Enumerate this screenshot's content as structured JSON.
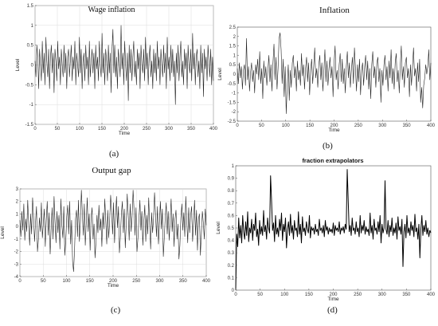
{
  "chart_data": [
    {
      "type": "line",
      "panel_label": "(a)",
      "title": "Wage inflation",
      "xlabel": "Time",
      "ylabel": "Level",
      "xlim": [
        0,
        400
      ],
      "ylim": [
        -1.5,
        1.5
      ],
      "x_ticks": [
        0,
        50,
        100,
        150,
        200,
        250,
        300,
        350,
        400
      ],
      "y_ticks": [
        -1.5,
        -1,
        -0.5,
        0,
        0.5,
        1,
        1.5
      ],
      "grid": true,
      "series": [
        {
          "values": [
            0.1,
            -0.3,
            0.5,
            0.2,
            -0.6,
            0.4,
            0.0,
            -0.4,
            0.6,
            -0.2,
            0.3,
            -0.5,
            0.7,
            0.1,
            -0.3,
            0.4,
            -0.6,
            0.2,
            0.5,
            -0.2,
            0.3,
            -0.7,
            0.4,
            0.1,
            -0.4,
            0.6,
            -0.1,
            0.2,
            -0.5,
            0.4,
            0.0,
            -0.3,
            0.5,
            -0.2,
            0.3,
            -0.6,
            0.2,
            0.4,
            -0.3,
            0.1,
            0.5,
            -0.4,
            0.2,
            -0.1,
            0.6,
            -0.5,
            0.3,
            0.0,
            -0.3,
            0.7,
            -0.2,
            0.4,
            -0.6,
            0.1,
            0.3,
            -0.4,
            0.5,
            -0.1,
            0.2,
            -0.5,
            0.6,
            -0.3,
            0.1,
            0.4,
            -0.2,
            0.3,
            -0.6,
            0.5,
            -0.1,
            0.2,
            -0.4,
            0.6,
            0.0,
            -0.3,
            0.8,
            -0.2,
            0.3,
            -0.5,
            0.4,
            0.1,
            -0.4,
            0.5,
            -0.2,
            0.3,
            -0.7,
            0.4,
            0.9,
            -0.2,
            0.5,
            -0.3,
            0.2,
            -0.6,
            0.4,
            0.1,
            -0.3,
            1.0,
            -0.1,
            0.3,
            -0.5,
            0.6,
            0.0,
            -0.4,
            0.3,
            -0.9,
            0.5,
            -0.2,
            0.4,
            -0.4,
            0.2,
            0.6,
            -0.3,
            0.1,
            -0.5,
            0.4,
            -0.1,
            0.3,
            -0.6,
            0.5,
            0.0,
            -0.2,
            0.4,
            -0.4,
            0.7,
            -0.1,
            0.3,
            -0.5,
            0.2,
            0.5,
            -0.3,
            0.1,
            -0.6,
            0.4,
            -0.2,
            0.3,
            -0.4,
            0.6,
            -0.1,
            0.2,
            -0.5,
            0.4,
            0.0,
            -0.3,
            0.5,
            -0.2,
            0.3,
            -0.6,
            0.7,
            -0.1,
            0.2,
            -0.4,
            0.5,
            -0.2,
            0.4,
            -0.3,
            0.1,
            -1.0,
            0.3,
            -0.2,
            0.5,
            -0.4,
            0.2,
            0.6,
            -0.3,
            0.1,
            -0.5,
            0.4,
            -0.1,
            0.3,
            -0.6,
            0.5,
            0.0,
            -0.2,
            0.4,
            -0.4,
            0.8,
            -0.1,
            0.3,
            -0.5,
            0.2,
            0.4,
            -0.3,
            0.1,
            -0.6,
            0.5,
            -0.2,
            0.3,
            -0.8,
            0.4,
            -0.1,
            0.2,
            -0.4,
            0.5,
            0.1,
            -0.3,
            0.4,
            -0.5,
            0.2,
            -0.4
          ]
        }
      ]
    },
    {
      "type": "line",
      "panel_label": "(b)",
      "title": "Inflation",
      "xlabel": "Time",
      "ylabel": "Level",
      "xlim": [
        0,
        400
      ],
      "ylim": [
        -2.5,
        2.5
      ],
      "x_ticks": [
        0,
        50,
        100,
        150,
        200,
        250,
        300,
        350,
        400
      ],
      "y_ticks": [
        -2.5,
        -2,
        -1.5,
        -1,
        -0.5,
        0,
        0.5,
        1,
        1.5,
        2,
        2.5
      ],
      "grid": false,
      "series": [
        {
          "values": [
            0.3,
            -0.5,
            0.6,
            -0.2,
            0.4,
            -0.8,
            0.2,
            0.5,
            -0.6,
            1.9,
            -0.3,
            0.4,
            -0.9,
            0.1,
            0.6,
            -0.4,
            0.2,
            -1.0,
            0.5,
            0.0,
            0.8,
            -0.3,
            1.2,
            -0.5,
            0.3,
            -1.3,
            0.7,
            -0.2,
            0.4,
            -0.6,
            0.2,
            1.0,
            -0.4,
            0.5,
            -0.9,
            0.6,
            1.6,
            -0.3,
            0.9,
            -0.8,
            0.3,
            1.9,
            2.2,
            1.3,
            -0.5,
            0.8,
            -1.2,
            0.4,
            -2.1,
            -0.6,
            0.5,
            -1.4,
            0.2,
            -0.7,
            0.6,
            1.0,
            -0.2,
            0.4,
            -0.9,
            0.7,
            -0.3,
            0.2,
            -0.6,
            1.1,
            -0.1,
            0.5,
            -0.8,
            0.3,
            0.9,
            -0.4,
            0.6,
            -1.1,
            0.2,
            0.8,
            -0.5,
            0.4,
            1.4,
            -0.2,
            0.3,
            -0.7,
            0.5,
            1.0,
            -0.3,
            0.6,
            -0.9,
            0.2,
            1.3,
            -0.4,
            0.7,
            -0.6,
            0.3,
            0.9,
            -0.2,
            0.4,
            -1.2,
            0.6,
            1.5,
            -0.3,
            0.2,
            -0.8,
            0.5,
            1.1,
            -0.4,
            0.8,
            -0.5,
            0.3,
            -1.0,
            0.4,
            1.2,
            -0.2,
            0.6,
            -0.7,
            0.2,
            0.9,
            -0.5,
            1.4,
            0.3,
            -0.9,
            0.5,
            -0.4,
            0.8,
            -1.1,
            0.2,
            0.6,
            -0.6,
            0.4,
            1.0,
            -0.3,
            0.7,
            -0.8,
            0.3,
            -1.3,
            0.5,
            1.2,
            -0.2,
            0.4,
            -0.7,
            0.6,
            0.9,
            -0.4,
            0.3,
            -1.5,
            0.2,
            -0.6,
            0.5,
            1.0,
            -0.3,
            0.4,
            -0.9,
            0.7,
            -0.2,
            1.3,
            -0.5,
            0.3,
            -0.8,
            0.6,
            1.1,
            -0.4,
            0.2,
            -1.0,
            0.5,
            1.5,
            -0.3,
            0.4,
            -0.7,
            0.6,
            0.9,
            -0.2,
            0.3,
            -1.2,
            0.5,
            -0.6,
            0.4,
            1.4,
            -0.1,
            0.3,
            -0.9,
            0.6,
            -0.4,
            0.8,
            -1.5,
            -0.7,
            -1.8,
            -0.6,
            -0.2,
            0.5,
            0.0,
            0.4,
            1.3,
            -0.3,
            0.6
          ]
        }
      ]
    },
    {
      "type": "line",
      "panel_label": "(c)",
      "title": "Output gap",
      "xlabel": "Time",
      "ylabel": "Level",
      "xlim": [
        0,
        400
      ],
      "ylim": [
        -4,
        3
      ],
      "x_ticks": [
        0,
        50,
        100,
        150,
        200,
        250,
        300,
        350,
        400
      ],
      "y_ticks": [
        -4,
        -3,
        -2,
        -1,
        0,
        1,
        2,
        3
      ],
      "grid": true,
      "series": [
        {
          "values": [
            0.5,
            -0.8,
            1.2,
            -0.3,
            1.8,
            -1.1,
            0.6,
            -0.4,
            2.1,
            0.2,
            -1.5,
            1.0,
            -0.6,
            2.3,
            0.8,
            -1.2,
            0.3,
            1.6,
            -2.0,
            -1.0,
            0.7,
            -0.4,
            1.9,
            -0.9,
            0.2,
            1.4,
            -1.6,
            0.5,
            2.0,
            -0.7,
            1.1,
            -2.2,
            -0.3,
            1.5,
            -1.0,
            2.4,
            0.4,
            -1.3,
            1.2,
            -0.5,
            0.9,
            -1.8,
            2.2,
            0.1,
            -0.9,
            1.6,
            -2.3,
            -1.1,
            0.8,
            1.7,
            -0.6,
            2.0,
            -1.4,
            0.5,
            -2.8,
            -3.6,
            -1.9,
            0.6,
            1.3,
            -0.8,
            2.1,
            -1.2,
            0.4,
            2.9,
            1.1,
            -0.7,
            1.8,
            -1.5,
            0.3,
            2.3,
            -0.4,
            1.0,
            -1.9,
            0.7,
            1.5,
            -1.0,
            0.2,
            -2.5,
            -1.2,
            0.9,
            -0.5,
            1.7,
            -0.3,
            0.6,
            -1.6,
            1.1,
            -0.2,
            2.2,
            0.4,
            -1.4,
            1.3,
            -0.9,
            0.5,
            2.5,
            1.2,
            -0.6,
            1.9,
            -1.3,
            0.7,
            2.4,
            -0.1,
            1.6,
            -2.1,
            -0.8,
            1.0,
            2.0,
            -0.5,
            1.4,
            -1.7,
            0.3,
            2.6,
            0.9,
            -1.1,
            1.8,
            -0.4,
            0.8,
            2.9,
            1.3,
            -0.7,
            1.5,
            -2.0,
            -0.9,
            0.6,
            2.1,
            -0.3,
            1.2,
            -1.5,
            0.4,
            1.7,
            -1.2,
            0.9,
            -0.6,
            2.3,
            0.2,
            -1.8,
            1.1,
            -0.5,
            0.7,
            2.7,
            1.0,
            -0.8,
            1.6,
            -1.4,
            0.3,
            2.0,
            -0.2,
            1.4,
            -2.4,
            -0.9,
            0.8,
            1.9,
            -0.6,
            1.2,
            -1.1,
            0.5,
            2.2,
            -0.4,
            1.0,
            -1.6,
            0.6,
            1.3,
            -1.0,
            0.2,
            -2.6,
            -1.5,
            0.7,
            1.8,
            -0.3,
            1.1,
            -0.8,
            2.4,
            0.5,
            -1.3,
            1.5,
            -0.5,
            0.9,
            1.6,
            -1.2,
            0.4,
            2.1,
            -0.7,
            1.3,
            -1.9,
            0.6,
            1.0,
            -2.3,
            -0.6,
            1.2,
            0.3,
            -1.0,
            1.4,
            0.1
          ]
        }
      ]
    },
    {
      "type": "line",
      "panel_label": "(d)",
      "title": "fraction extrapolators",
      "xlabel": "Time",
      "ylabel": "Level",
      "xlim": [
        0,
        400
      ],
      "ylim": [
        0,
        1
      ],
      "x_ticks": [
        0,
        50,
        100,
        150,
        200,
        250,
        300,
        350,
        400
      ],
      "y_ticks": [
        0,
        0.1,
        0.2,
        0.3,
        0.4,
        0.5,
        0.6,
        0.7,
        0.8,
        0.9,
        1
      ],
      "grid": false,
      "series": [
        {
          "values": [
            0.0,
            0.45,
            0.35,
            0.58,
            0.42,
            0.52,
            0.38,
            0.6,
            0.47,
            0.41,
            0.55,
            0.44,
            0.63,
            0.39,
            0.5,
            0.46,
            0.57,
            0.4,
            0.53,
            0.48,
            0.62,
            0.43,
            0.49,
            0.36,
            0.56,
            0.45,
            0.51,
            0.44,
            0.64,
            0.47,
            0.52,
            0.41,
            0.58,
            0.5,
            0.46,
            0.92,
            0.72,
            0.48,
            0.54,
            0.39,
            0.6,
            0.45,
            0.5,
            0.43,
            0.57,
            0.48,
            0.62,
            0.4,
            0.53,
            0.47,
            0.58,
            0.34,
            0.49,
            0.55,
            0.44,
            0.61,
            0.46,
            0.52,
            0.41,
            0.56,
            0.48,
            0.5,
            0.43,
            0.63,
            0.45,
            0.53,
            0.38,
            0.59,
            0.47,
            0.5,
            0.44,
            0.55,
            0.49,
            0.46,
            0.6,
            0.42,
            0.51,
            0.48,
            0.5,
            0.45,
            0.53,
            0.47,
            0.49,
            0.44,
            0.57,
            0.48,
            0.5,
            0.46,
            0.52,
            0.43,
            0.56,
            0.48,
            0.51,
            0.45,
            0.5,
            0.47,
            0.49,
            0.46,
            0.54,
            0.44,
            0.52,
            0.48,
            0.5,
            0.47,
            0.55,
            0.45,
            0.5,
            0.48,
            0.51,
            0.46,
            0.53,
            0.49,
            0.97,
            0.72,
            0.47,
            0.52,
            0.44,
            0.58,
            0.48,
            0.5,
            0.45,
            0.55,
            0.47,
            0.5,
            0.43,
            0.6,
            0.46,
            0.52,
            0.48,
            0.56,
            0.45,
            0.51,
            0.47,
            0.49,
            0.44,
            0.62,
            0.46,
            0.52,
            0.41,
            0.57,
            0.48,
            0.5,
            0.45,
            0.55,
            0.47,
            0.6,
            0.38,
            0.53,
            0.46,
            0.5,
            0.88,
            0.49,
            0.45,
            0.56,
            0.43,
            0.52,
            0.47,
            0.58,
            0.44,
            0.5,
            0.46,
            0.54,
            0.41,
            0.59,
            0.48,
            0.51,
            0.45,
            0.57,
            0.19,
            0.47,
            0.53,
            0.42,
            0.6,
            0.46,
            0.5,
            0.44,
            0.55,
            0.48,
            0.52,
            0.43,
            0.61,
            0.47,
            0.5,
            0.41,
            0.53,
            0.26,
            0.49,
            0.6,
            0.44,
            0.52,
            0.47,
            0.56,
            0.45,
            0.5,
            0.43,
            0.48,
            0.46
          ]
        }
      ]
    }
  ]
}
